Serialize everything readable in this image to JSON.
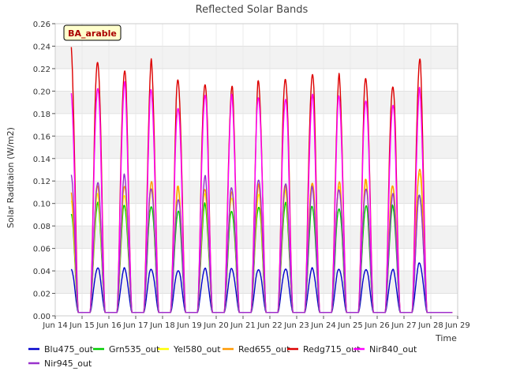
{
  "chart_data": {
    "type": "line",
    "title": "Reflected Solar Bands",
    "xlabel": "Time",
    "ylabel": "Solar Raditaion (W/m2)",
    "station_badge": "BA_arable",
    "xlim": [
      14,
      29
    ],
    "ylim": [
      0,
      0.26
    ],
    "x_ticks": [
      {
        "value": 14,
        "label": "Jun 14"
      },
      {
        "value": 15,
        "label": "Jun 15"
      },
      {
        "value": 16,
        "label": "Jun 16"
      },
      {
        "value": 17,
        "label": "Jun 17"
      },
      {
        "value": 18,
        "label": "Jun 18"
      },
      {
        "value": 19,
        "label": "Jun 19"
      },
      {
        "value": 20,
        "label": "Jun 20"
      },
      {
        "value": 21,
        "label": "Jun 21"
      },
      {
        "value": 22,
        "label": "Jun 22"
      },
      {
        "value": 23,
        "label": "Jun 23"
      },
      {
        "value": 24,
        "label": "Jun 24"
      },
      {
        "value": 25,
        "label": "Jun 25"
      },
      {
        "value": 26,
        "label": "Jun 26"
      },
      {
        "value": 27,
        "label": "Jun 27"
      },
      {
        "value": 28,
        "label": "Jun 28"
      },
      {
        "value": 29,
        "label": "Jun 29"
      }
    ],
    "y_ticks": [
      {
        "value": 0.0,
        "label": "0.00"
      },
      {
        "value": 0.02,
        "label": "0.02"
      },
      {
        "value": 0.04,
        "label": "0.04"
      },
      {
        "value": 0.06,
        "label": "0.06"
      },
      {
        "value": 0.08,
        "label": "0.08"
      },
      {
        "value": 0.1,
        "label": "0.10"
      },
      {
        "value": 0.12,
        "label": "0.12"
      },
      {
        "value": 0.14,
        "label": "0.14"
      },
      {
        "value": 0.16,
        "label": "0.16"
      },
      {
        "value": 0.18,
        "label": "0.18"
      },
      {
        "value": 0.2,
        "label": "0.20"
      },
      {
        "value": 0.22,
        "label": "0.22"
      },
      {
        "value": 0.24,
        "label": "0.24"
      },
      {
        "value": 0.26,
        "label": "0.26"
      }
    ],
    "data_range": [
      14.6,
      28.8
    ],
    "day_centers": [
      14.5,
      15.5,
      16.5,
      17.5,
      18.5,
      19.5,
      20.5,
      21.5,
      22.5,
      23.5,
      24.5,
      25.5,
      26.5,
      27.5
    ],
    "series": [
      {
        "name": "Blu475_out",
        "color": "#0000cc",
        "daily_peaks": [
          0.044,
          0.044,
          0.043,
          0.043,
          0.042,
          0.043,
          0.043,
          0.043,
          0.043,
          0.043,
          0.043,
          0.043,
          0.042,
          0.048
        ]
      },
      {
        "name": "Grn535_out",
        "color": "#00cc00",
        "daily_peaks": [
          0.095,
          0.102,
          0.101,
          0.102,
          0.096,
          0.101,
          0.097,
          0.101,
          0.102,
          0.1,
          0.1,
          0.101,
          0.099,
          0.112
        ]
      },
      {
        "name": "Yel580_out",
        "color": "#ffff00",
        "daily_peaks": [
          0.105,
          0.11,
          0.112,
          0.118,
          0.116,
          0.112,
          0.11,
          0.111,
          0.113,
          0.122,
          0.12,
          0.122,
          0.119,
          0.133
        ]
      },
      {
        "name": "Red655_out",
        "color": "#ff9900",
        "daily_peaks": [
          0.112,
          0.12,
          0.121,
          0.122,
          0.117,
          0.118,
          0.115,
          0.118,
          0.12,
          0.124,
          0.122,
          0.123,
          0.121,
          0.136
        ]
      },
      {
        "name": "Redg715_out",
        "color": "#dd0000",
        "daily_peaks": [
          0.25,
          0.237,
          0.226,
          0.229,
          0.218,
          0.216,
          0.208,
          0.213,
          0.221,
          0.223,
          0.216,
          0.219,
          0.214,
          0.233
        ]
      },
      {
        "name": "Nir840_out",
        "color": "#ff00ff",
        "daily_peaks": [
          0.21,
          0.212,
          0.211,
          0.206,
          0.194,
          0.203,
          0.198,
          0.202,
          0.202,
          0.2,
          0.2,
          0.201,
          0.194,
          0.204
        ]
      },
      {
        "name": "Nir945_out",
        "color": "#9933cc",
        "daily_peaks": [
          0.133,
          0.122,
          0.127,
          0.118,
          0.108,
          0.126,
          0.117,
          0.127,
          0.121,
          0.116,
          0.117,
          0.118,
          0.11,
          0.11
        ]
      }
    ],
    "legend_location": "bottom"
  }
}
